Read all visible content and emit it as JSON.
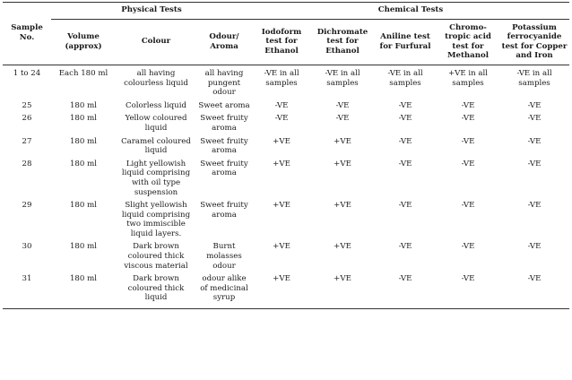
{
  "headers": {
    "sample_no": "Sample No.",
    "physical_group": "Physical Tests",
    "chemical_group": "Chemical Tests",
    "columns": [
      "Volume (approx)",
      "Colour",
      "Odour/ Aroma",
      "Iodoform test for Ethanol",
      "Dichromate test for Ethanol",
      "Aniline test for Furfural",
      "Chromo-tropic acid test for Methanol",
      "Potassium ferrocyanide test for Copper and Iron"
    ]
  },
  "rows": [
    [
      "1 to 24",
      "Each 180 ml",
      "all having colourless liquid",
      "all having pungent odour",
      "-VE in all samples",
      "-VE in all samples",
      "-VE in all samples",
      "+VE in all samples",
      "-VE in all samples"
    ],
    [
      "25",
      "180 ml",
      "Colorless liquid",
      "Sweet aroma",
      "-VE",
      "-VE",
      "-VE",
      "-VE",
      "-VE"
    ],
    [
      "26",
      "180 ml",
      "Yellow coloured liquid",
      "Sweet fruity aroma",
      "-VE",
      "-VE",
      "-VE",
      "-VE",
      "-VE"
    ],
    [
      "27",
      "180 ml",
      "Caramel coloured liquid",
      "Sweet fruity aroma",
      "+VE",
      "+VE",
      "-VE",
      "-VE",
      "-VE"
    ],
    [
      "28",
      "180 ml",
      "Light yellowish liquid comprising with oil type suspension",
      "Sweet fruity aroma",
      "+VE",
      "+VE",
      "-VE",
      "-VE",
      "-VE"
    ],
    [
      "29",
      "180 ml",
      "Slight yellowish liquid comprising two immiscible liquid layers.",
      "Sweet fruity aroma",
      "+VE",
      "+VE",
      "-VE",
      "-VE",
      "-VE"
    ],
    [
      "30",
      "180 ml",
      "Dark brown coloured thick viscous material",
      "Burnt molasses odour",
      "+VE",
      "+VE",
      "-VE",
      "-VE",
      "-VE"
    ],
    [
      "31",
      "180 ml",
      "Dark brown coloured thick liquid",
      "odour alike of medicinal syrup",
      "+VE",
      "+VE",
      "-VE",
      "-VE",
      "-VE"
    ]
  ]
}
